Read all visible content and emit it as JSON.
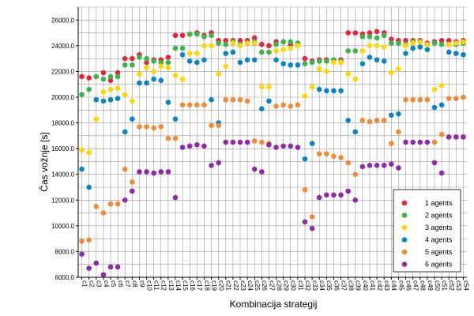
{
  "chart_data": {
    "type": "scatter",
    "xlabel": "Kombinacija strategij",
    "ylabel": "Čas vožnje [s]",
    "ylim": [
      6000,
      27000
    ],
    "yticks": [
      "6000.0",
      "8000.0",
      "10000.0",
      "12000.0",
      "14000.0",
      "16000.0",
      "18000.0",
      "20000.0",
      "22000.0",
      "24000.0",
      "26000.0"
    ],
    "grid": true,
    "legend_position": "bottom-right",
    "categories": [
      "c1",
      "c2",
      "c3",
      "c4",
      "c5",
      "c6",
      "c7",
      "c8",
      "c9",
      "c10",
      "c11",
      "c12",
      "c13",
      "c14",
      "c15",
      "c16",
      "c17",
      "c18",
      "c19",
      "c20",
      "c21",
      "c22",
      "c23",
      "c24",
      "c25",
      "c26",
      "c27",
      "c28",
      "c29",
      "c30",
      "c31",
      "c32",
      "c33",
      "c34",
      "c35",
      "c36",
      "c37",
      "c38",
      "c39",
      "c40",
      "c41",
      "c42",
      "c43",
      "c44",
      "c45",
      "c46",
      "c47",
      "c48",
      "c49",
      "c50",
      "c51",
      "c52",
      "c53",
      "c54"
    ],
    "series": [
      {
        "name": "1 agents",
        "color": "#e8223f",
        "values": [
          21600,
          21500,
          21600,
          21900,
          21300,
          21900,
          23000,
          23000,
          23300,
          22700,
          22900,
          22900,
          23100,
          24800,
          24800,
          24900,
          25000,
          24800,
          25000,
          24400,
          24400,
          24400,
          24400,
          24400,
          24600,
          24100,
          24000,
          24300,
          24300,
          24100,
          24200,
          23000,
          22800,
          22900,
          22900,
          22900,
          22900,
          25000,
          25000,
          24900,
          25000,
          25100,
          25000,
          24500,
          24400,
          24400,
          24400,
          24400,
          24200,
          24300,
          24400,
          24400,
          24300,
          24400
        ]
      },
      {
        "name": "2 agents",
        "color": "#3bb54a",
        "values": [
          20200,
          20600,
          21600,
          21400,
          21600,
          21600,
          22500,
          22500,
          23100,
          23000,
          22800,
          22700,
          22700,
          23800,
          23800,
          24900,
          24900,
          24700,
          24800,
          24200,
          24100,
          24300,
          24100,
          24200,
          24300,
          23500,
          23500,
          24100,
          24300,
          24300,
          24200,
          22600,
          22700,
          22800,
          22800,
          22900,
          22800,
          23600,
          23600,
          24700,
          24700,
          24600,
          24800,
          24200,
          24200,
          24100,
          24300,
          24300,
          24100,
          24200,
          24100,
          24100,
          24100,
          24200
        ]
      },
      {
        "name": "3 agents",
        "color": "#ffd700",
        "values": [
          15900,
          15700,
          18300,
          20400,
          20600,
          20700,
          20200,
          19700,
          21800,
          22300,
          22000,
          22400,
          22300,
          21700,
          21400,
          23400,
          23400,
          24000,
          24000,
          21800,
          22400,
          24200,
          24000,
          24200,
          24200,
          20800,
          20800,
          23600,
          23700,
          23800,
          24000,
          20100,
          20800,
          22200,
          22000,
          22700,
          22700,
          21800,
          21400,
          23600,
          24000,
          24000,
          23900,
          21900,
          22200,
          24000,
          24200,
          24300,
          24100,
          20600,
          20900,
          24100,
          24200,
          24300
        ]
      },
      {
        "name": "4 agents",
        "color": "#0b84c6",
        "values": [
          14400,
          13000,
          19800,
          19700,
          19800,
          19900,
          17300,
          18300,
          21100,
          21100,
          21400,
          21300,
          19600,
          18300,
          23300,
          22800,
          22700,
          22900,
          19800,
          18000,
          23400,
          23500,
          22700,
          22900,
          22900,
          19100,
          19700,
          22900,
          22600,
          22500,
          22500,
          15200,
          16400,
          20600,
          20500,
          20500,
          20500,
          18200,
          17300,
          22600,
          23100,
          22900,
          22800,
          18600,
          18700,
          23400,
          23800,
          23900,
          23700,
          19200,
          19400,
          23500,
          23400,
          23300
        ]
      },
      {
        "name": "5 agents",
        "color": "#f08a3a",
        "values": [
          8800,
          8900,
          11500,
          11000,
          11700,
          11700,
          14400,
          13400,
          17700,
          17700,
          17600,
          17700,
          16800,
          16800,
          19400,
          19400,
          19400,
          19400,
          17800,
          17800,
          19800,
          19800,
          19800,
          19700,
          16600,
          16500,
          16400,
          19300,
          19400,
          19300,
          19400,
          12800,
          10700,
          15600,
          15600,
          15400,
          15300,
          14900,
          14000,
          18200,
          18100,
          18200,
          18200,
          16400,
          17300,
          19800,
          19800,
          19800,
          19800,
          16500,
          17100,
          19900,
          19900,
          20000
        ]
      },
      {
        "name": "6 agents",
        "color": "#8e2aa6",
        "values": [
          7800,
          6700,
          7100,
          6200,
          6800,
          6800,
          12000,
          12700,
          14200,
          14200,
          14100,
          14200,
          14200,
          12200,
          16100,
          16200,
          16300,
          16200,
          14700,
          14900,
          16500,
          16500,
          16500,
          16500,
          14400,
          14200,
          16300,
          16100,
          16200,
          16200,
          16100,
          10300,
          9800,
          12200,
          12400,
          12400,
          12400,
          12700,
          12000,
          14600,
          14700,
          14700,
          14700,
          14800,
          14500,
          16500,
          16500,
          16500,
          16500,
          14900,
          14100,
          16900,
          16900,
          16900
        ]
      }
    ]
  }
}
